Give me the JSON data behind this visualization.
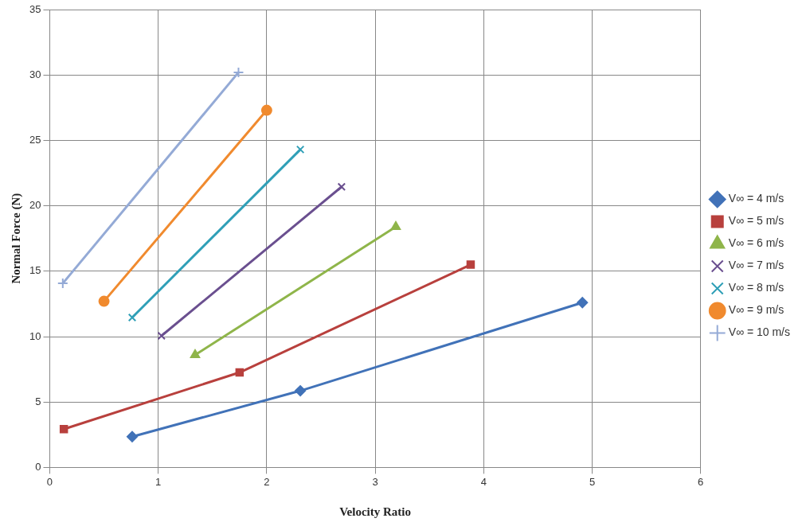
{
  "chart_data": {
    "type": "line",
    "xlabel": "Velocity Ratio",
    "ylabel": "Normal Force (N)",
    "xlim": [
      0,
      6
    ],
    "xticks": [
      0,
      1,
      2,
      3,
      4,
      5,
      6
    ],
    "ylim": [
      0,
      35
    ],
    "yticks": [
      0,
      5,
      10,
      15,
      20,
      25,
      30,
      35
    ],
    "grid": true,
    "legend": "right",
    "line_style": "solid",
    "series": [
      {
        "name": "V∞ = 4 m/s",
        "color": "#4172b8",
        "marker": "diamond",
        "x": [
          0.76,
          2.31,
          4.91
        ],
        "values": [
          2.35,
          5.86,
          12.6
        ]
      },
      {
        "name": "V∞ = 5 m/s",
        "color": "#b8403d",
        "marker": "square",
        "x": [
          0.13,
          1.75,
          3.88
        ],
        "values": [
          2.93,
          7.26,
          15.5
        ]
      },
      {
        "name": "V∞ = 6 m/s",
        "color": "#8fb54a",
        "marker": "triangle",
        "x": [
          1.34,
          3.19
        ],
        "values": [
          8.6,
          18.4
        ]
      },
      {
        "name": "V∞ = 7 m/s",
        "color": "#6a4f8f",
        "marker": "cross",
        "x": [
          1.03,
          2.69
        ],
        "values": [
          10.06,
          21.45
        ]
      },
      {
        "name": "V∞ = 8 m/s",
        "color": "#2f9fb7",
        "marker": "cross",
        "x": [
          0.76,
          2.31
        ],
        "values": [
          11.46,
          24.3
        ]
      },
      {
        "name": "V∞ = 9 m/s",
        "color": "#f08a2e",
        "marker": "circle",
        "x": [
          0.5,
          2.0
        ],
        "values": [
          12.7,
          27.3
        ]
      },
      {
        "name": "V∞ = 10 m/s",
        "color": "#94aad6",
        "marker": "plus",
        "x": [
          0.12,
          1.74
        ],
        "values": [
          14.07,
          30.2
        ]
      }
    ]
  }
}
